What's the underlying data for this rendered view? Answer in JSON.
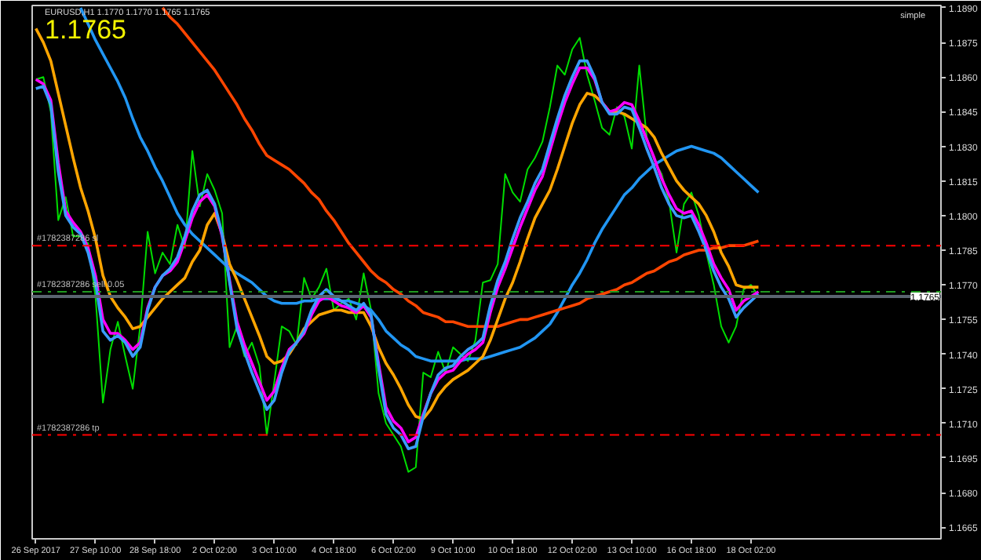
{
  "chart_data": {
    "type": "line",
    "title": "EURUSD,H1  1.1770 1.1770 1.1765 1.1765",
    "annotations": [
      "1.1765",
      "simple"
    ],
    "line_style": "solid",
    "categories": [
      "26 Sep 2017",
      null,
      null,
      null,
      null,
      null,
      null,
      null,
      "27 Sep 10:00",
      null,
      null,
      null,
      null,
      null,
      null,
      null,
      "28 Sep 18:00",
      null,
      null,
      null,
      null,
      null,
      null,
      null,
      "2 Oct 02:00",
      null,
      null,
      null,
      null,
      null,
      null,
      null,
      "3 Oct 10:00",
      null,
      null,
      null,
      null,
      null,
      null,
      null,
      "4 Oct 18:00",
      null,
      null,
      null,
      null,
      null,
      null,
      null,
      "6 Oct 02:00",
      null,
      null,
      null,
      null,
      null,
      null,
      null,
      "9 Oct 10:00",
      null,
      null,
      null,
      null,
      null,
      null,
      null,
      "10 Oct 18:00",
      null,
      null,
      null,
      null,
      null,
      null,
      null,
      "12 Oct 02:00",
      null,
      null,
      null,
      null,
      null,
      null,
      null,
      "13 Oct 10:00",
      null,
      null,
      null,
      null,
      null,
      null,
      null,
      "16 Oct 18:00",
      null,
      null,
      null,
      null,
      null,
      null,
      null,
      "18 Oct 02:00",
      null,
      null,
      null,
      null,
      null,
      null,
      null,
      null,
      null,
      null,
      null,
      null,
      null,
      null,
      null,
      null,
      null,
      null,
      null,
      null,
      null,
      null,
      null,
      null,
      null
    ],
    "ylim": [
      1.166,
      1.1891
    ],
    "yticks": [
      1.1665,
      {
        "value": 1.168,
        "label": "1.1680"
      },
      1.1695,
      {
        "value": 1.171,
        "label": "1.1710"
      },
      1.1725,
      {
        "value": 1.174,
        "label": "1.1740"
      },
      1.1755,
      {
        "value": 1.177,
        "label": "1.1770"
      },
      1.1785,
      {
        "value": 1.18,
        "label": "1.1800"
      },
      1.1815,
      {
        "value": 1.183,
        "label": "1.1830"
      },
      1.1845,
      {
        "value": 1.186,
        "label": "1.1860"
      },
      1.1875,
      {
        "value": 1.189,
        "label": "1.1890"
      }
    ],
    "series": [
      {
        "color": "#00dd00",
        "values": [
          1.1859,
          1.186,
          1.1845,
          1.1798,
          1.1808,
          1.1791,
          1.1791,
          1.1788,
          1.1765,
          1.1719,
          1.1742,
          1.1754,
          1.1739,
          1.1725,
          1.1752,
          1.1793,
          1.1775,
          1.1784,
          1.1779,
          1.1796,
          1.1786,
          1.1828,
          1.1804,
          1.1818,
          1.1811,
          1.1801,
          1.1743,
          1.1752,
          1.1739,
          1.1745,
          1.1735,
          1.1705,
          1.1728,
          1.1752,
          1.175,
          1.1744,
          1.1773,
          1.1764,
          1.1769,
          1.1777,
          1.1759,
          1.1762,
          1.1764,
          1.1755,
          1.1775,
          1.1759,
          1.1723,
          1.171,
          1.1705,
          1.17,
          1.1689,
          1.1691,
          1.1732,
          1.173,
          1.1741,
          1.1732,
          1.1743,
          1.174,
          1.1737,
          1.1746,
          1.1771,
          1.1772,
          1.1779,
          1.1818,
          1.181,
          1.1806,
          1.182,
          1.1825,
          1.1832,
          1.1847,
          1.1865,
          1.1861,
          1.1872,
          1.1877,
          1.1861,
          1.185,
          1.1838,
          1.1835,
          1.1847,
          1.1843,
          1.1829,
          1.1865,
          1.1834,
          1.1824,
          1.1818,
          1.1806,
          1.1784,
          1.1805,
          1.181,
          1.18,
          1.1784,
          1.177,
          1.1752,
          1.1745,
          1.1752,
          1.1768,
          1.177,
          1.1765,
          null,
          null,
          null,
          null,
          null,
          null,
          null,
          null,
          null,
          null,
          null,
          null,
          null,
          null,
          null,
          null,
          null,
          null,
          null,
          null,
          null,
          null,
          null,
          null
        ]
      },
      {
        "color": "#2196f3",
        "values": [
          null,
          null,
          null,
          null,
          null,
          null,
          1.189,
          1.1883,
          1.1876,
          1.187,
          1.1864,
          1.1858,
          1.1851,
          1.1842,
          1.1834,
          1.1828,
          1.1821,
          1.1815,
          1.1808,
          1.1801,
          1.1796,
          1.1792,
          1.1789,
          1.1786,
          1.1783,
          1.178,
          1.1777,
          1.1775,
          1.1773,
          1.1771,
          1.1768,
          1.1765,
          1.1763,
          1.1762,
          1.1762,
          1.1762,
          1.1763,
          1.1763,
          1.1764,
          1.1764,
          1.1764,
          1.1763,
          1.1763,
          1.1762,
          1.1761,
          1.1759,
          1.1755,
          1.175,
          1.1747,
          1.1744,
          1.1742,
          1.1739,
          1.1738,
          1.1737,
          1.1737,
          1.1737,
          1.1737,
          1.1737,
          1.1738,
          1.1738,
          1.1738,
          1.1739,
          1.174,
          1.1741,
          1.1742,
          1.1743,
          1.1745,
          1.1747,
          1.175,
          1.1753,
          1.1758,
          1.1764,
          1.177,
          1.1775,
          1.1781,
          1.1788,
          1.1794,
          1.1799,
          1.1804,
          1.1809,
          1.1812,
          1.1816,
          1.1819,
          1.1822,
          1.1824,
          1.1826,
          1.1828,
          1.1829,
          1.183,
          1.1829,
          1.1828,
          1.1827,
          1.1825,
          1.1822,
          1.1819,
          1.1816,
          1.1813,
          1.181,
          null,
          null,
          null,
          null,
          null,
          null,
          null,
          null,
          null,
          null,
          null,
          null,
          null,
          null,
          null,
          null,
          null,
          null,
          null,
          null,
          null,
          null,
          null,
          null
        ]
      },
      {
        "color": "#ff4500",
        "values": [
          null,
          null,
          null,
          null,
          null,
          null,
          null,
          null,
          null,
          null,
          null,
          null,
          null,
          null,
          null,
          null,
          null,
          1.189,
          1.1886,
          1.1883,
          1.1879,
          1.1875,
          1.1871,
          1.1867,
          1.1863,
          1.1858,
          1.1853,
          1.1848,
          1.1842,
          1.1837,
          1.1831,
          1.1826,
          1.1824,
          1.1822,
          1.182,
          1.1817,
          1.1814,
          1.181,
          1.1807,
          1.1802,
          1.1798,
          1.1793,
          1.1788,
          1.1784,
          1.178,
          1.1776,
          1.1773,
          1.1771,
          1.1768,
          1.1766,
          1.1763,
          1.1761,
          1.1758,
          1.1757,
          1.1756,
          1.1754,
          1.1754,
          1.1753,
          1.1752,
          1.1752,
          1.1752,
          1.1752,
          1.1752,
          1.1753,
          1.1754,
          1.1755,
          1.1755,
          1.1756,
          1.1757,
          1.1758,
          1.1759,
          1.176,
          1.1761,
          1.1762,
          1.1764,
          1.1765,
          1.1766,
          1.1767,
          1.1768,
          1.177,
          1.1771,
          1.1773,
          1.1775,
          1.1776,
          1.1778,
          1.178,
          1.1781,
          1.1783,
          1.1784,
          1.1785,
          1.1785,
          1.1786,
          1.1786,
          1.1787,
          1.1787,
          1.1787,
          1.1788,
          1.1789,
          null,
          null,
          null,
          null,
          null,
          null,
          null,
          null,
          null,
          null,
          null,
          null,
          null,
          null,
          null,
          null,
          null,
          null,
          null,
          null,
          null,
          null,
          null,
          null
        ]
      },
      {
        "color": "#ffa500",
        "values": [
          1.1881,
          1.1875,
          1.1867,
          1.1853,
          1.1839,
          1.1825,
          1.1812,
          1.1802,
          1.179,
          1.1774,
          1.1765,
          1.176,
          1.1756,
          1.1751,
          1.1752,
          1.1756,
          1.176,
          1.1764,
          1.1767,
          1.177,
          1.1773,
          1.178,
          1.1785,
          1.1796,
          1.1801,
          1.1792,
          1.1779,
          1.1772,
          1.1764,
          1.1756,
          1.1748,
          1.1739,
          1.1736,
          1.1737,
          1.174,
          1.1745,
          1.1751,
          1.1754,
          1.1757,
          1.1758,
          1.1759,
          1.1759,
          1.1758,
          1.1758,
          1.1758,
          1.1752,
          1.1743,
          1.1736,
          1.1731,
          1.1725,
          1.1718,
          1.1713,
          1.1712,
          1.1716,
          1.1722,
          1.1726,
          1.1729,
          1.1731,
          1.1733,
          1.1736,
          1.1739,
          1.1746,
          1.1755,
          1.1764,
          1.1771,
          1.178,
          1.179,
          1.1799,
          1.1805,
          1.1811,
          1.182,
          1.183,
          1.184,
          1.1848,
          1.1853,
          1.1852,
          1.1849,
          1.1845,
          1.1845,
          1.1844,
          1.1842,
          1.184,
          1.1838,
          1.1834,
          1.1827,
          1.1821,
          1.1815,
          1.1811,
          1.1808,
          1.1805,
          1.18,
          1.1793,
          1.1784,
          1.1778,
          1.177,
          1.1769,
          1.1769,
          1.1769,
          null,
          null,
          null,
          null,
          null,
          null,
          null,
          null,
          null,
          null,
          null,
          null,
          null,
          null,
          null,
          null,
          null,
          null,
          null,
          null,
          null,
          null,
          null,
          null
        ]
      },
      {
        "color": "#ff00ff",
        "values": [
          1.1859,
          1.1857,
          1.185,
          1.1823,
          1.1802,
          1.1797,
          1.1793,
          1.1786,
          1.1774,
          1.1755,
          1.1749,
          1.1749,
          1.1746,
          1.1742,
          1.1745,
          1.176,
          1.1769,
          1.1774,
          1.1776,
          1.178,
          1.1789,
          1.1799,
          1.1806,
          1.1809,
          1.1804,
          1.1791,
          1.1772,
          1.1754,
          1.1744,
          1.1736,
          1.1728,
          1.172,
          1.1724,
          1.1734,
          1.1742,
          1.1745,
          1.1749,
          1.1757,
          1.1763,
          1.1765,
          1.1763,
          1.1761,
          1.176,
          1.1758,
          1.1761,
          1.1756,
          1.1736,
          1.1717,
          1.1711,
          1.1708,
          1.1702,
          1.1704,
          1.1714,
          1.1723,
          1.1729,
          1.1732,
          1.1733,
          1.1737,
          1.174,
          1.1742,
          1.1745,
          1.1758,
          1.1769,
          1.1777,
          1.1786,
          1.1795,
          1.1803,
          1.1811,
          1.1817,
          1.1828,
          1.1839,
          1.1849,
          1.1857,
          1.1864,
          1.1864,
          1.1859,
          1.1849,
          1.1845,
          1.1846,
          1.1849,
          1.1848,
          1.1841,
          1.1833,
          1.1825,
          1.1816,
          1.1809,
          1.1803,
          1.1801,
          1.1802,
          1.1796,
          1.1788,
          1.1779,
          1.1773,
          1.1768,
          1.1759,
          1.1763,
          1.1765,
          1.1767,
          null,
          null,
          null,
          null,
          null,
          null,
          null,
          null,
          null,
          null,
          null,
          null,
          null,
          null,
          null,
          null,
          null,
          null,
          null,
          null,
          null,
          null,
          null,
          null
        ]
      },
      {
        "color": "#3a9cff",
        "values": [
          1.1855,
          1.1856,
          1.1848,
          1.1819,
          1.18,
          1.1795,
          1.1792,
          1.1784,
          1.1771,
          1.175,
          1.1746,
          1.1748,
          1.1745,
          1.1739,
          1.1743,
          1.1759,
          1.1769,
          1.1774,
          1.1777,
          1.1782,
          1.1791,
          1.1802,
          1.1809,
          1.1811,
          1.1805,
          1.1792,
          1.1771,
          1.1751,
          1.1741,
          1.1732,
          1.1724,
          1.1716,
          1.172,
          1.1732,
          1.1741,
          1.1745,
          1.175,
          1.1759,
          1.1765,
          1.1768,
          1.1765,
          1.1763,
          1.1761,
          1.1759,
          1.1762,
          1.1757,
          1.1734,
          1.1714,
          1.1708,
          1.1705,
          1.1699,
          1.17,
          1.1713,
          1.1723,
          1.1731,
          1.1734,
          1.1735,
          1.1739,
          1.1742,
          1.1744,
          1.1747,
          1.1761,
          1.1772,
          1.178,
          1.179,
          1.1799,
          1.1806,
          1.1814,
          1.182,
          1.1831,
          1.1842,
          1.1852,
          1.186,
          1.1867,
          1.1867,
          1.186,
          1.1849,
          1.1844,
          1.1844,
          1.1847,
          1.1846,
          1.1838,
          1.1829,
          1.1821,
          1.1812,
          1.1805,
          1.18,
          1.1799,
          1.18,
          1.1793,
          1.1785,
          1.1776,
          1.1769,
          1.1764,
          1.1756,
          1.176,
          1.1763,
          1.1766,
          null,
          null,
          null,
          null,
          null,
          null,
          null,
          null,
          null,
          null,
          null,
          null,
          null,
          null,
          null,
          null,
          null,
          null,
          null,
          null,
          null,
          null,
          null,
          null
        ]
      }
    ],
    "ref_lines": [
      {
        "axis": "y",
        "value": 1.1787,
        "label": "#1782387286 sl",
        "color": "#ff0000",
        "line_style": "dashdot"
      },
      {
        "axis": "y",
        "value": 1.1767,
        "label": "#1782387286 sell 0.05",
        "color": "#1f9a1f",
        "line_style": "dashdot"
      },
      {
        "axis": "y",
        "value": 1.1765,
        "label": "1.1765",
        "color": "#5a6470",
        "line_style": "solid"
      },
      {
        "axis": "y",
        "value": 1.1705,
        "label": "#1782387286 tp",
        "color": "#ff0000",
        "line_style": "dashdot"
      }
    ]
  }
}
